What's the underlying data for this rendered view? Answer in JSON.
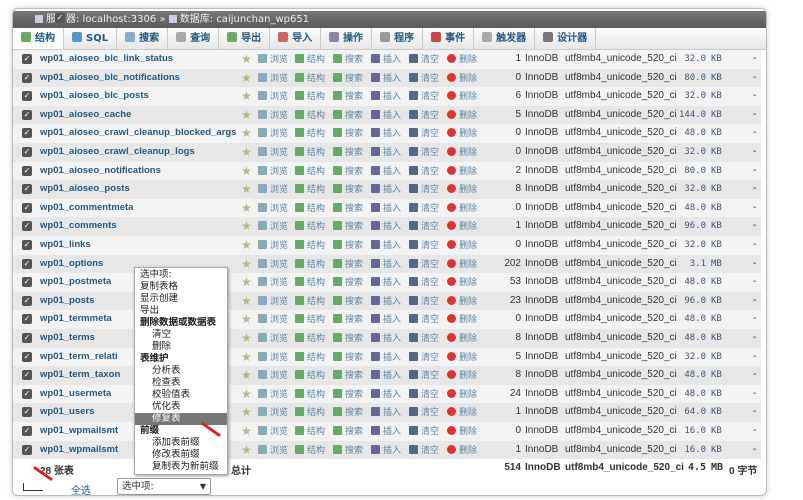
{
  "titlebar": {
    "server_label": "服务器: localhost:3306",
    "separator": "»",
    "database_label": "数据库: caijunchan_wp651"
  },
  "tabs": [
    {
      "label": "结构",
      "icon": "structure-icon"
    },
    {
      "label": "SQL",
      "icon": "sql-icon"
    },
    {
      "label": "搜索",
      "icon": "search-icon"
    },
    {
      "label": "查询",
      "icon": "query-icon"
    },
    {
      "label": "导出",
      "icon": "export-icon"
    },
    {
      "label": "导入",
      "icon": "import-icon"
    },
    {
      "label": "操作",
      "icon": "wrench-icon"
    },
    {
      "label": "程序",
      "icon": "routines-icon"
    },
    {
      "label": "事件",
      "icon": "clock-icon"
    },
    {
      "label": "触发器",
      "icon": "trigger-icon"
    },
    {
      "label": "设计器",
      "icon": "designer-icon"
    }
  ],
  "actions": {
    "browse": "浏览",
    "structure": "结构",
    "search": "搜索",
    "insert": "插入",
    "empty": "清空",
    "drop": "删除"
  },
  "tables": [
    {
      "name": "wp01_aioseo_blc_link_status",
      "rows": "1",
      "engine": "InnoDB",
      "collation": "utf8mb4_unicode_520_ci",
      "size": "32.0",
      "unit": "KB",
      "overhead": "-"
    },
    {
      "name": "wp01_aioseo_blc_notifications",
      "rows": "0",
      "engine": "InnoDB",
      "collation": "utf8mb4_unicode_520_ci",
      "size": "80.0",
      "unit": "KB",
      "overhead": "-"
    },
    {
      "name": "wp01_aioseo_blc_posts",
      "rows": "6",
      "engine": "InnoDB",
      "collation": "utf8mb4_unicode_520_ci",
      "size": "32.0",
      "unit": "KB",
      "overhead": "-"
    },
    {
      "name": "wp01_aioseo_cache",
      "rows": "5",
      "engine": "InnoDB",
      "collation": "utf8mb4_unicode_520_ci",
      "size": "144.0",
      "unit": "KB",
      "overhead": "-"
    },
    {
      "name": "wp01_aioseo_crawl_cleanup_blocked_args",
      "rows": "0",
      "engine": "InnoDB",
      "collation": "utf8mb4_unicode_520_ci",
      "size": "48.0",
      "unit": "KB",
      "overhead": "-"
    },
    {
      "name": "wp01_aioseo_crawl_cleanup_logs",
      "rows": "0",
      "engine": "InnoDB",
      "collation": "utf8mb4_unicode_520_ci",
      "size": "32.0",
      "unit": "KB",
      "overhead": "-"
    },
    {
      "name": "wp01_aioseo_notifications",
      "rows": "2",
      "engine": "InnoDB",
      "collation": "utf8mb4_unicode_520_ci",
      "size": "80.0",
      "unit": "KB",
      "overhead": "-"
    },
    {
      "name": "wp01_aioseo_posts",
      "rows": "8",
      "engine": "InnoDB",
      "collation": "utf8mb4_unicode_520_ci",
      "size": "32.0",
      "unit": "KB",
      "overhead": "-"
    },
    {
      "name": "wp01_commentmeta",
      "rows": "0",
      "engine": "InnoDB",
      "collation": "utf8mb4_unicode_520_ci",
      "size": "48.0",
      "unit": "KB",
      "overhead": "-"
    },
    {
      "name": "wp01_comments",
      "rows": "1",
      "engine": "InnoDB",
      "collation": "utf8mb4_unicode_520_ci",
      "size": "96.0",
      "unit": "KB",
      "overhead": "-"
    },
    {
      "name": "wp01_links",
      "rows": "0",
      "engine": "InnoDB",
      "collation": "utf8mb4_unicode_520_ci",
      "size": "32.0",
      "unit": "KB",
      "overhead": "-"
    },
    {
      "name": "wp01_options",
      "rows": "202",
      "engine": "InnoDB",
      "collation": "utf8mb4_unicode_520_ci",
      "size": "3.1",
      "unit": "MB",
      "overhead": "-"
    },
    {
      "name": "wp01_postmeta",
      "rows": "53",
      "engine": "InnoDB",
      "collation": "utf8mb4_unicode_520_ci",
      "size": "48.0",
      "unit": "KB",
      "overhead": "-"
    },
    {
      "name": "wp01_posts",
      "rows": "23",
      "engine": "InnoDB",
      "collation": "utf8mb4_unicode_520_ci",
      "size": "96.0",
      "unit": "KB",
      "overhead": "-"
    },
    {
      "name": "wp01_termmeta",
      "rows": "0",
      "engine": "InnoDB",
      "collation": "utf8mb4_unicode_520_ci",
      "size": "48.0",
      "unit": "KB",
      "overhead": "-"
    },
    {
      "name": "wp01_terms",
      "rows": "8",
      "engine": "InnoDB",
      "collation": "utf8mb4_unicode_520_ci",
      "size": "48.0",
      "unit": "KB",
      "overhead": "-"
    },
    {
      "name": "wp01_term_relati",
      "rows": "5",
      "engine": "InnoDB",
      "collation": "utf8mb4_unicode_520_ci",
      "size": "32.0",
      "unit": "KB",
      "overhead": "-"
    },
    {
      "name": "wp01_term_taxon",
      "rows": "8",
      "engine": "InnoDB",
      "collation": "utf8mb4_unicode_520_ci",
      "size": "48.0",
      "unit": "KB",
      "overhead": "-"
    },
    {
      "name": "wp01_usermeta",
      "rows": "24",
      "engine": "InnoDB",
      "collation": "utf8mb4_unicode_520_ci",
      "size": "48.0",
      "unit": "KB",
      "overhead": "-"
    },
    {
      "name": "wp01_users",
      "rows": "1",
      "engine": "InnoDB",
      "collation": "utf8mb4_unicode_520_ci",
      "size": "64.0",
      "unit": "KB",
      "overhead": "-"
    },
    {
      "name": "wp01_wpmailsmt",
      "rows": "0",
      "engine": "InnoDB",
      "collation": "utf8mb4_unicode_520_ci",
      "size": "16.0",
      "unit": "KB",
      "overhead": "-"
    },
    {
      "name": "wp01_wpmailsmt",
      "rows": "1",
      "engine": "InnoDB",
      "collation": "utf8mb4_unicode_520_ci",
      "size": "16.0",
      "unit": "KB",
      "overhead": "-"
    }
  ],
  "footer": {
    "table_count": "28 张表",
    "total_label": "总计",
    "rows": "514",
    "engine": "InnoDB",
    "collation": "utf8mb4_unicode_520_ci",
    "size": "4.5",
    "unit": "MB",
    "overhead": "0 字节"
  },
  "bulk": {
    "select_all": "全选",
    "select_value": "选中项:"
  },
  "menu": [
    {
      "label": "选中项:",
      "type": "item"
    },
    {
      "label": "复制表格",
      "type": "item"
    },
    {
      "label": "显示创建",
      "type": "item"
    },
    {
      "label": "导出",
      "type": "item"
    },
    {
      "label": "删除数据或数据表",
      "type": "grp"
    },
    {
      "label": "清空",
      "type": "sub"
    },
    {
      "label": "删除",
      "type": "sub"
    },
    {
      "label": "表维护",
      "type": "grp"
    },
    {
      "label": "分析表",
      "type": "sub"
    },
    {
      "label": "检查表",
      "type": "sub"
    },
    {
      "label": "校验值表",
      "type": "sub"
    },
    {
      "label": "优化表",
      "type": "sub"
    },
    {
      "label": "修复表",
      "type": "sub",
      "selected": true
    },
    {
      "label": "前缀",
      "type": "grp"
    },
    {
      "label": "添加表前缀",
      "type": "sub"
    },
    {
      "label": "修改表前缀",
      "type": "sub"
    },
    {
      "label": "复制表为新前缀",
      "type": "sub"
    }
  ]
}
